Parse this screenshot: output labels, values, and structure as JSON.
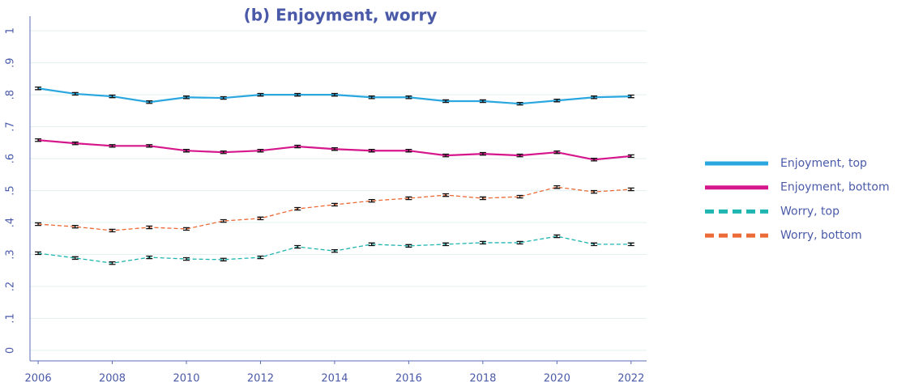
{
  "chart_data": {
    "type": "line",
    "title": "(b) Enjoyment, worry",
    "x": [
      2006,
      2007,
      2008,
      2009,
      2010,
      2011,
      2012,
      2013,
      2014,
      2015,
      2016,
      2017,
      2018,
      2019,
      2020,
      2021,
      2022
    ],
    "xlim": [
      2005.78,
      2022.42
    ],
    "xticks": [
      2006,
      2008,
      2010,
      2012,
      2014,
      2016,
      2018,
      2020,
      2022
    ],
    "ylim": [
      -0.033,
      1.046
    ],
    "yticks": [
      0,
      {
        "value": 0.1,
        "label": ".1"
      },
      {
        "value": 0.2,
        "label": ".2"
      },
      {
        "value": 0.3,
        "label": ".3"
      },
      {
        "value": 0.4,
        "label": ".4"
      },
      {
        "value": 0.5,
        "label": ".5"
      },
      {
        "value": 0.6,
        "label": ".6"
      },
      {
        "value": 0.7,
        "label": ".7"
      },
      {
        "value": 0.8,
        "label": ".8"
      },
      {
        "value": 0.9,
        "label": ".9"
      },
      1
    ],
    "grid": true,
    "legend": "right",
    "series": [
      {
        "name": "Enjoyment, top",
        "color": "#2aa7df",
        "dashed": false,
        "error": 0.004,
        "values": [
          0.82,
          0.803,
          0.795,
          0.777,
          0.792,
          0.79,
          0.8,
          0.8,
          0.8,
          0.792,
          0.792,
          0.78,
          0.78,
          0.772,
          0.782,
          0.792,
          0.795
        ]
      },
      {
        "name": "Enjoyment, bottom",
        "color": "#d6168b",
        "dashed": false,
        "error": 0.004,
        "values": [
          0.658,
          0.648,
          0.64,
          0.64,
          0.625,
          0.62,
          0.625,
          0.638,
          0.63,
          0.625,
          0.625,
          0.61,
          0.615,
          0.61,
          0.62,
          0.597,
          0.608
        ]
      },
      {
        "name": "Worry, top",
        "color": "#1fb5b0",
        "dashed": true,
        "error": 0.004,
        "values": [
          0.304,
          0.289,
          0.273,
          0.291,
          0.286,
          0.284,
          0.291,
          0.324,
          0.311,
          0.332,
          0.327,
          0.332,
          0.337,
          0.337,
          0.357,
          0.332,
          0.332
        ]
      },
      {
        "name": "Worry, bottom",
        "color": "#ec6a35",
        "dashed": true,
        "error": 0.004,
        "values": [
          0.395,
          0.387,
          0.375,
          0.385,
          0.38,
          0.405,
          0.413,
          0.443,
          0.456,
          0.468,
          0.476,
          0.486,
          0.476,
          0.481,
          0.511,
          0.496,
          0.504
        ]
      }
    ]
  }
}
